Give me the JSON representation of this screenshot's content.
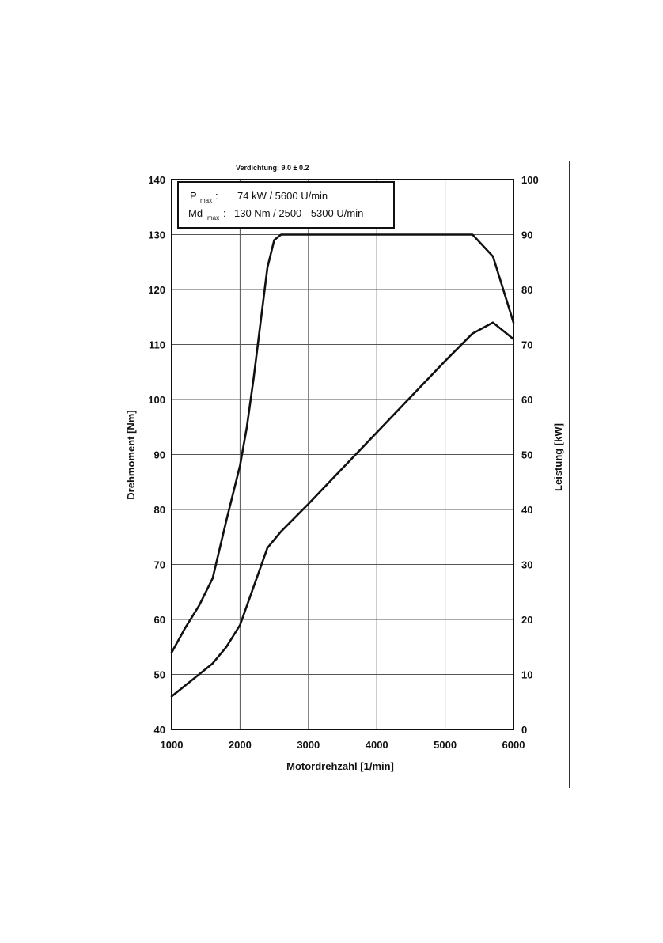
{
  "chart_data": {
    "type": "line",
    "title": "Verdichtung: 9.0 ± 0.2",
    "xlabel": "Motordrehzahl [1/min]",
    "ylabel_left": "Drehmoment [Nm]",
    "ylabel_right": "Leistung [kW]",
    "xlim": [
      1000,
      6000
    ],
    "ylim_left": [
      40,
      140
    ],
    "ylim_right": [
      0,
      100
    ],
    "x_ticks": [
      "1000",
      "2000",
      "3000",
      "4000",
      "5000",
      "6000"
    ],
    "y_ticks_left": [
      "40",
      "50",
      "60",
      "70",
      "80",
      "90",
      "100",
      "110",
      "120",
      "130",
      "140"
    ],
    "y_ticks_right": [
      "0",
      "10",
      "20",
      "30",
      "40",
      "50",
      "60",
      "70",
      "80",
      "90",
      "100"
    ],
    "grid": true,
    "annotation": {
      "p_label": "P",
      "p_sub": "max",
      "p_value": "74 kW / 5600 U/min",
      "md_label": "Md",
      "md_sub": "max",
      "md_value": "130 Nm / 2500 - 5300 U/min"
    },
    "series": [
      {
        "axis": "left",
        "x": [
          1000,
          1200,
          1400,
          1600,
          1800,
          2000,
          2100,
          2200,
          2300,
          2400,
          2500,
          2600,
          3000,
          4000,
          5000,
          5400,
          5700,
          5900,
          6000
        ],
        "y": [
          54,
          58.5,
          62.5,
          67.5,
          78,
          88,
          95,
          104,
          114,
          124,
          129,
          130,
          130,
          130,
          130,
          130,
          126,
          118,
          114
        ]
      },
      {
        "axis": "right",
        "x": [
          1000,
          1200,
          1400,
          1600,
          1800,
          2000,
          2200,
          2400,
          2600,
          3000,
          4000,
          5000,
          5400,
          5700,
          6000
        ],
        "y": [
          6,
          8,
          10,
          12,
          15,
          19,
          26,
          33,
          36,
          41,
          54,
          67,
          72,
          74,
          71
        ]
      }
    ]
  }
}
